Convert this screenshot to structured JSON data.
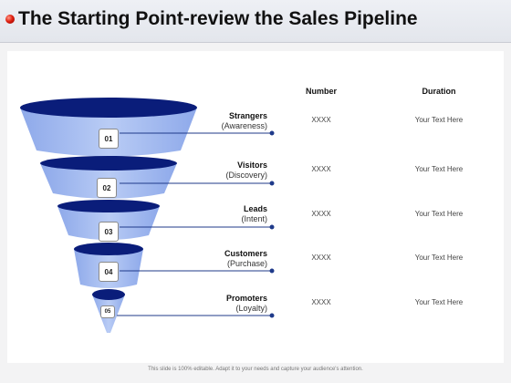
{
  "slide": {
    "title": "The Starting Point-review the Sales Pipeline",
    "footer": "This slide is 100% editable. Adapt it to your needs and capture your audience's attention."
  },
  "table": {
    "headers": {
      "number": "Number",
      "duration": "Duration"
    }
  },
  "stages": [
    {
      "badge": "01",
      "name": "Strangers",
      "sub": "(Awareness)",
      "number": "XXXX",
      "duration": "Your Text Here"
    },
    {
      "badge": "02",
      "name": "Visitors",
      "sub": "(Discovery)",
      "number": "XXXX",
      "duration": "Your Text Here"
    },
    {
      "badge": "03",
      "name": "Leads",
      "sub": "(Intent)",
      "number": "XXXX",
      "duration": "Your Text Here"
    },
    {
      "badge": "04",
      "name": "Customers",
      "sub": "(Purchase)",
      "number": "XXXX",
      "duration": "Your Text Here"
    },
    {
      "badge": "05",
      "name": "Promoters",
      "sub": "(Loyalty)",
      "number": "XXXX",
      "duration": "Your Text Here"
    }
  ],
  "colors": {
    "funnel_dark": "#0a1d7a",
    "funnel_light": "#a9bff1",
    "connector": "#1f3a8a",
    "title_bullet": "#e02010"
  }
}
